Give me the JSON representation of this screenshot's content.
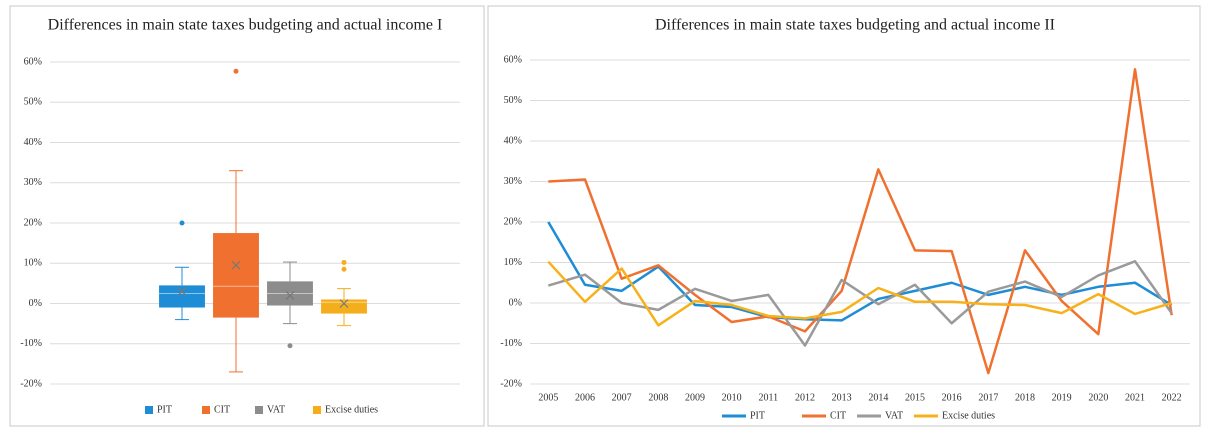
{
  "chart_data": [
    {
      "type": "box",
      "title": "Differences in main state taxes budgeting and actual income I",
      "ylim": [
        -20,
        60
      ],
      "yticks": [
        {
          "value": -20,
          "label": "-20%"
        },
        {
          "value": -10,
          "label": "-10%"
        },
        {
          "value": 0,
          "label": "0%"
        },
        {
          "value": 10,
          "label": "10%"
        },
        {
          "value": 20,
          "label": "20%"
        },
        {
          "value": 30,
          "label": "30%"
        },
        {
          "value": 40,
          "label": "40%"
        },
        {
          "value": 50,
          "label": "50%"
        },
        {
          "value": 60,
          "label": "60%"
        }
      ],
      "grid": true,
      "boxes": [
        {
          "name": "PIT",
          "color": "#1f8dd6",
          "min": -4,
          "q1": -1,
          "median": 2.5,
          "q3": 4.5,
          "max": 9,
          "mean": 3,
          "outliers": [
            20
          ]
        },
        {
          "name": "CIT",
          "color": "#f07030",
          "min": -17,
          "q1": -3.5,
          "median": 4.3,
          "q3": 17.5,
          "max": 33,
          "mean": 9.5,
          "outliers": [
            57.7
          ]
        },
        {
          "name": "VAT",
          "color": "#8c8c8c",
          "min": -5,
          "q1": -0.5,
          "median": 2.5,
          "q3": 5.5,
          "max": 10.3,
          "mean": 2,
          "outliers": [
            -10.5
          ]
        },
        {
          "name": "Excise duties",
          "color": "#f5ae1b",
          "min": -5.5,
          "q1": -2.5,
          "median": 0.3,
          "q3": 1,
          "max": 3.7,
          "mean": 0,
          "outliers": [
            10.2,
            8.5
          ]
        }
      ]
    },
    {
      "type": "line",
      "title": "Differences in main state taxes budgeting and actual income II",
      "categories": [
        "2005",
        "2006",
        "2007",
        "2008",
        "2009",
        "2010",
        "2011",
        "2012",
        "2013",
        "2014",
        "2015",
        "2016",
        "2017",
        "2018",
        "2019",
        "2020",
        "2021",
        "2022"
      ],
      "ylim": [
        -20,
        60
      ],
      "yticks": [
        {
          "value": -20,
          "label": "-20%"
        },
        {
          "value": -10,
          "label": "-10%"
        },
        {
          "value": 0,
          "label": "0%"
        },
        {
          "value": 10,
          "label": "10%"
        },
        {
          "value": 20,
          "label": "20%"
        },
        {
          "value": 30,
          "label": "30%"
        },
        {
          "value": 40,
          "label": "40%"
        },
        {
          "value": 50,
          "label": "50%"
        },
        {
          "value": 60,
          "label": "60%"
        }
      ],
      "grid": true,
      "series": [
        {
          "name": "PIT",
          "color": "#1f8dd6",
          "values": [
            20,
            4.5,
            3,
            9,
            -0.5,
            -1,
            -3.5,
            -4,
            -4.3,
            1,
            3,
            5,
            2,
            4,
            2,
            4,
            5,
            -0.5
          ]
        },
        {
          "name": "CIT",
          "color": "#f07030",
          "values": [
            30,
            30.5,
            6,
            9.3,
            2,
            -4.7,
            -3.3,
            -7,
            3,
            33,
            13,
            12.8,
            -17.3,
            13,
            0.5,
            -7.7,
            57.7,
            -3
          ]
        },
        {
          "name": "VAT",
          "color": "#9a9a9a",
          "values": [
            4.3,
            7,
            0,
            -1.7,
            3.5,
            0.5,
            2,
            -10.5,
            5.7,
            -0.3,
            4.5,
            -5,
            2.8,
            5.3,
            1.5,
            6.8,
            10.3,
            -2.5
          ]
        },
        {
          "name": "Excise duties",
          "color": "#f7b11a",
          "values": [
            10.2,
            0.3,
            8.5,
            -5.5,
            0.5,
            -0.5,
            -3.2,
            -3.8,
            -2.2,
            3.7,
            0.3,
            0.3,
            -0.3,
            -0.5,
            -2.5,
            2.2,
            -2.7,
            0
          ]
        }
      ]
    }
  ]
}
